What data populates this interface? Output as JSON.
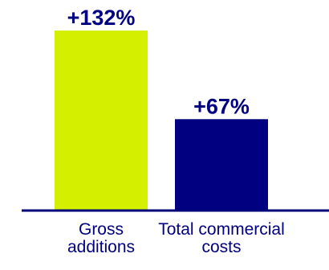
{
  "chart_data": {
    "type": "bar",
    "categories": [
      "Gross additions",
      "Total commercial costs"
    ],
    "category_lines": [
      [
        "Gross",
        "additions"
      ],
      [
        "Total commercial",
        "costs"
      ]
    ],
    "values": [
      132,
      67
    ],
    "data_labels": [
      "+132%",
      "+67%"
    ],
    "bar_colors": [
      "#d4f000",
      "#000080"
    ],
    "axis_color": "#00007a",
    "label_color": "#000080",
    "ylim": [
      0,
      140
    ],
    "grid": false,
    "legend": "none",
    "title": "",
    "xlabel": "",
    "ylabel": ""
  }
}
